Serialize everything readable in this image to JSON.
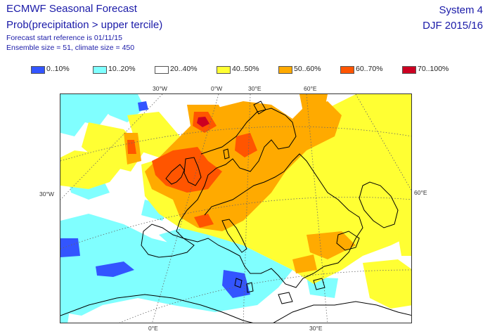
{
  "header": {
    "title": "ECMWF Seasonal Forecast",
    "subtitle": "Prob(precipitation > upper tercile)",
    "start_reference": "Forecast start reference is 01/11/15",
    "ensemble_info": "Ensemble size = 51, climate size = 450",
    "system": "System 4",
    "season": "DJF 2015/16"
  },
  "legend": [
    {
      "label": "0..10%",
      "color": "#3355ff"
    },
    {
      "label": "10..20%",
      "color": "#80ffff"
    },
    {
      "label": "20..40%",
      "color": "#ffffff"
    },
    {
      "label": "40..50%",
      "color": "#ffff33"
    },
    {
      "label": "50..60%",
      "color": "#ffaa00"
    },
    {
      "label": "60..70%",
      "color": "#ff5500"
    },
    {
      "label": "70..100%",
      "color": "#cc0022"
    }
  ],
  "map": {
    "labels_top": [
      "30°W",
      "0°W",
      "30°E",
      "60°E"
    ],
    "label_left": "30°W",
    "label_right": "60°E",
    "labels_bottom": [
      "0°E",
      "30°E"
    ]
  }
}
